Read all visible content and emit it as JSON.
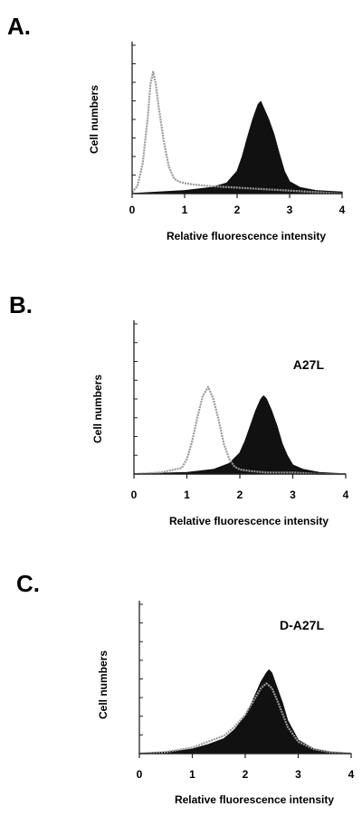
{
  "colors": {
    "filled": "#111111",
    "outline": "#9a9a9a",
    "axis": "#222222"
  },
  "chart_data": [
    {
      "type": "area",
      "panel_label": "A.",
      "annotation": "",
      "xlabel": "Relative fluorescence intensity",
      "ylabel": "Cell numbers",
      "xlim": [
        0,
        4
      ],
      "ylim": [
        0,
        1
      ],
      "x_ticks": [
        "0",
        "1",
        "2",
        "3",
        "4"
      ],
      "grid": false,
      "series": [
        {
          "style": "outline-grey",
          "x": [
            0.0,
            0.1,
            0.2,
            0.3,
            0.35,
            0.4,
            0.45,
            0.5,
            0.6,
            0.7,
            0.8,
            0.9,
            1.0,
            1.2,
            1.5,
            2.0,
            2.5,
            3.0,
            3.5,
            4.0
          ],
          "values": [
            0.01,
            0.05,
            0.2,
            0.52,
            0.74,
            0.82,
            0.74,
            0.6,
            0.36,
            0.18,
            0.1,
            0.08,
            0.07,
            0.06,
            0.05,
            0.04,
            0.03,
            0.02,
            0.01,
            0.0
          ]
        },
        {
          "style": "filled-black",
          "x": [
            0.0,
            0.5,
            1.0,
            1.5,
            1.8,
            2.0,
            2.1,
            2.2,
            2.3,
            2.4,
            2.45,
            2.5,
            2.6,
            2.7,
            2.8,
            2.9,
            3.0,
            3.2,
            3.5,
            4.0
          ],
          "values": [
            0.0,
            0.01,
            0.02,
            0.04,
            0.07,
            0.15,
            0.25,
            0.38,
            0.5,
            0.6,
            0.62,
            0.58,
            0.5,
            0.4,
            0.27,
            0.15,
            0.08,
            0.04,
            0.02,
            0.01
          ]
        }
      ]
    },
    {
      "type": "area",
      "panel_label": "B.",
      "annotation": "A27L",
      "xlabel": "Relative fluorescence intensity",
      "ylabel": "Cell numbers",
      "xlim": [
        0,
        4
      ],
      "ylim": [
        0,
        1
      ],
      "x_ticks": [
        "0",
        "1",
        "2",
        "3",
        "4"
      ],
      "grid": false,
      "series": [
        {
          "style": "outline-grey",
          "x": [
            0.0,
            0.5,
            0.9,
            1.0,
            1.1,
            1.2,
            1.3,
            1.4,
            1.5,
            1.6,
            1.7,
            1.8,
            1.9,
            2.0,
            2.2,
            2.5,
            3.0,
            3.5,
            4.0
          ],
          "values": [
            0.0,
            0.01,
            0.04,
            0.1,
            0.22,
            0.38,
            0.52,
            0.58,
            0.5,
            0.36,
            0.2,
            0.1,
            0.05,
            0.03,
            0.02,
            0.01,
            0.01,
            0.0,
            0.0
          ]
        },
        {
          "style": "filled-black",
          "x": [
            0.0,
            1.0,
            1.5,
            1.8,
            2.0,
            2.1,
            2.2,
            2.3,
            2.4,
            2.45,
            2.5,
            2.6,
            2.7,
            2.8,
            2.9,
            3.0,
            3.2,
            3.5,
            4.0
          ],
          "values": [
            0.0,
            0.01,
            0.03,
            0.07,
            0.14,
            0.22,
            0.32,
            0.42,
            0.5,
            0.52,
            0.5,
            0.42,
            0.32,
            0.2,
            0.12,
            0.06,
            0.03,
            0.01,
            0.0
          ]
        }
      ]
    },
    {
      "type": "area",
      "panel_label": "C.",
      "annotation": "D-A27L",
      "xlabel": "Relative fluorescence intensity",
      "ylabel": "Cell numbers",
      "xlim": [
        0,
        4
      ],
      "ylim": [
        0,
        1
      ],
      "x_ticks": [
        "0",
        "1",
        "2",
        "3",
        "4"
      ],
      "grid": false,
      "series": [
        {
          "style": "outline-grey",
          "x": [
            0.0,
            0.5,
            1.0,
            1.3,
            1.6,
            1.8,
            2.0,
            2.1,
            2.2,
            2.3,
            2.4,
            2.5,
            2.6,
            2.7,
            2.8,
            3.0,
            3.3,
            3.6,
            4.0
          ],
          "values": [
            0.0,
            0.01,
            0.04,
            0.08,
            0.12,
            0.18,
            0.26,
            0.32,
            0.38,
            0.44,
            0.47,
            0.44,
            0.36,
            0.27,
            0.18,
            0.08,
            0.03,
            0.01,
            0.0
          ]
        },
        {
          "style": "filled-black",
          "x": [
            0.0,
            0.5,
            1.0,
            1.3,
            1.6,
            1.8,
            2.0,
            2.1,
            2.2,
            2.3,
            2.4,
            2.45,
            2.5,
            2.6,
            2.7,
            2.8,
            3.0,
            3.3,
            3.6,
            4.0
          ],
          "values": [
            0.0,
            0.01,
            0.03,
            0.06,
            0.1,
            0.16,
            0.25,
            0.32,
            0.4,
            0.48,
            0.54,
            0.56,
            0.54,
            0.44,
            0.34,
            0.22,
            0.09,
            0.03,
            0.01,
            0.0
          ]
        }
      ]
    }
  ]
}
